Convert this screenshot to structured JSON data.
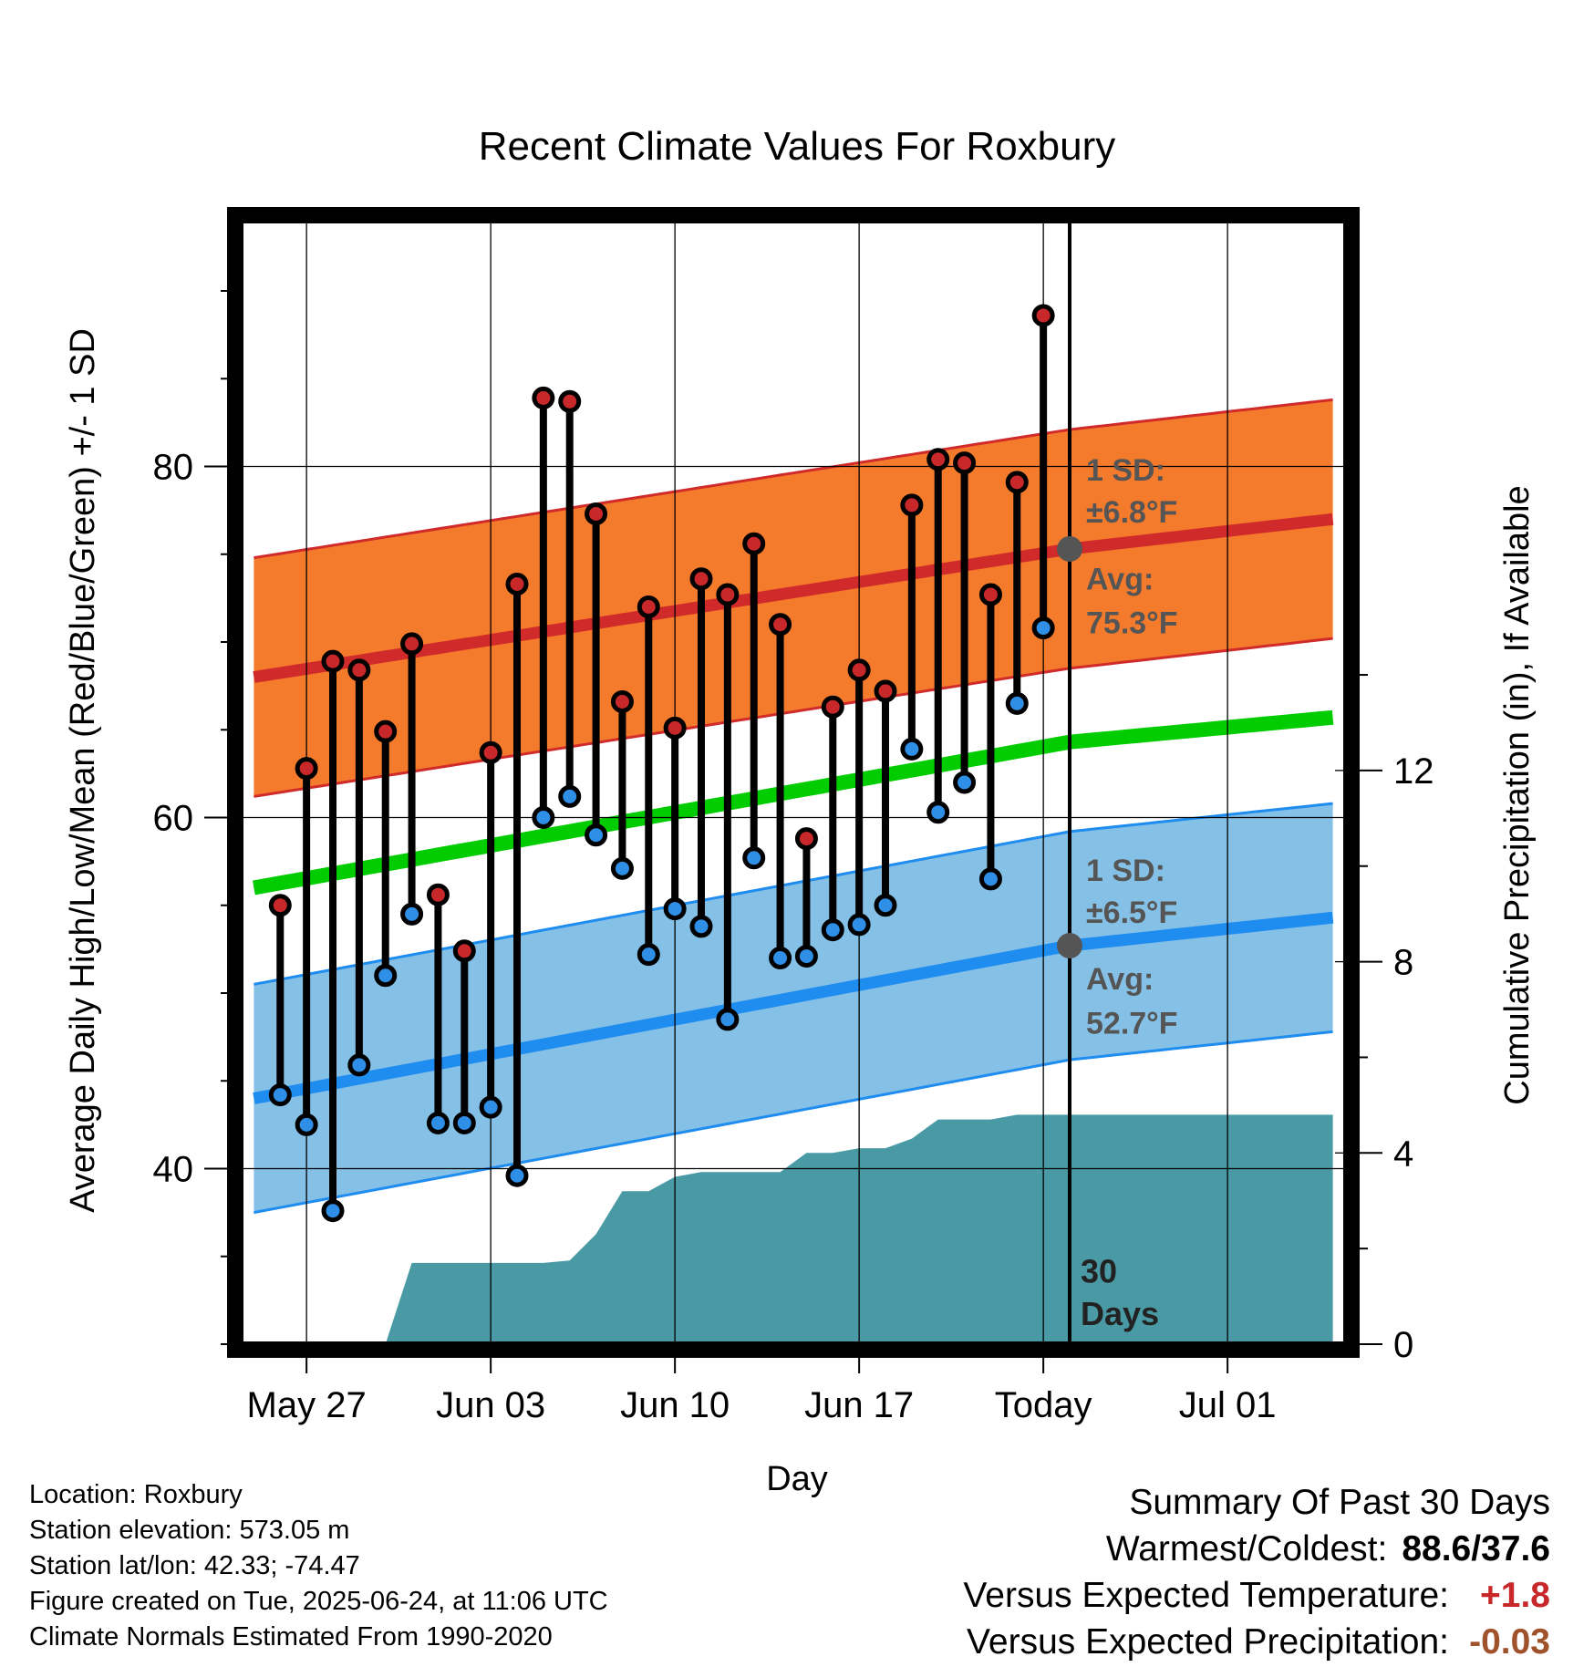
{
  "chart_data": {
    "type": "line",
    "title": "Recent Climate Values For Roxbury",
    "xlabel": "Day",
    "ylabel_left": "Average Daily High/Low/Mean (Red/Blue/Green) +/- 1 SD",
    "ylabel_right": "Cumulative Precipitation (in), If Available",
    "x_ticks": [
      "May 27",
      "Jun 03",
      "Jun 10",
      "Jun 17",
      "Today",
      "Jul 01"
    ],
    "y_left_ticks": [
      "40",
      "60",
      "80"
    ],
    "y_left_range": [
      30,
      94
    ],
    "y_right_ticks": [
      "0",
      "4",
      "8",
      "12"
    ],
    "y_right_range": [
      0,
      23.5
    ],
    "x_range_days_from_may25": [
      -0.5,
      41.5
    ],
    "today_day": 31,
    "daily": {
      "days_from_may25": [
        1,
        2,
        3,
        4,
        5,
        6,
        7,
        8,
        9,
        10,
        11,
        12,
        13,
        14,
        15,
        16,
        17,
        18,
        19,
        20,
        21,
        22,
        23,
        24,
        25,
        26,
        27,
        28,
        29,
        30
      ],
      "high": [
        55.0,
        62.8,
        68.9,
        68.4,
        64.9,
        69.9,
        55.6,
        52.4,
        63.7,
        73.3,
        83.9,
        83.7,
        77.3,
        66.6,
        72.0,
        65.1,
        73.6,
        72.7,
        75.6,
        71.0,
        58.8,
        66.3,
        68.4,
        67.2,
        77.8,
        80.4,
        80.2,
        72.7,
        79.1,
        88.6
      ],
      "low": [
        44.2,
        42.5,
        37.6,
        45.9,
        51.0,
        54.5,
        42.6,
        42.6,
        43.5,
        39.6,
        60.0,
        61.2,
        59.0,
        57.1,
        52.2,
        54.8,
        53.8,
        48.5,
        57.7,
        52.0,
        52.1,
        53.6,
        53.9,
        55.0,
        63.9,
        60.3,
        62.0,
        56.5,
        66.5,
        70.8
      ]
    },
    "normal_high": {
      "days_from_may25": [
        0,
        31,
        41
      ],
      "values": [
        68.0,
        75.3,
        77.0
      ]
    },
    "normal_low": {
      "days_from_may25": [
        0,
        31,
        41
      ],
      "values": [
        44.0,
        52.7,
        54.3
      ]
    },
    "normal_mean": {
      "days_from_may25": [
        0,
        31,
        41
      ],
      "values": [
        56.0,
        64.3,
        65.7
      ]
    },
    "sd_high_f": 6.8,
    "sd_low_f": 6.5,
    "cumulative_precip": {
      "days_from_may25": [
        5,
        6,
        7,
        8,
        9,
        10,
        11,
        12,
        13,
        14,
        15,
        16,
        17,
        18,
        19,
        20,
        21,
        22,
        23,
        24,
        25,
        26,
        27,
        28,
        29,
        30,
        41
      ],
      "values_in": [
        0,
        1.7,
        1.7,
        1.7,
        1.7,
        1.7,
        1.7,
        1.75,
        2.3,
        3.2,
        3.2,
        3.5,
        3.6,
        3.6,
        3.6,
        3.6,
        4.0,
        4.0,
        4.1,
        4.1,
        4.3,
        4.7,
        4.7,
        4.7,
        4.8,
        4.8,
        4.8
      ]
    },
    "colors": {
      "high_band": "#f47a2c",
      "high_line": "#d12a2a",
      "low_band": "#85c0e6",
      "low_line": "#1f8cf0",
      "mean_line": "#00cc00",
      "precip": "#4a9aa5",
      "high_marker": "#c8282a",
      "low_marker": "#2f8ee6"
    },
    "annotations": {
      "high_sd_label": "1 SD:",
      "high_sd_value": "±6.8°F",
      "high_avg_label": "Avg:",
      "high_avg_value": "75.3°F",
      "low_sd_label": "1 SD:",
      "low_sd_value": "±6.5°F",
      "low_avg_label": "Avg:",
      "low_avg_value": "52.7°F",
      "days_count": "30",
      "days_word": "Days"
    },
    "grid": true,
    "legend": "none"
  },
  "footer": {
    "location": "Location: Roxbury",
    "elevation": "Station elevation: 573.05 m",
    "latlon": "Station lat/lon: 42.33; -74.47",
    "created": "Figure created on Tue, 2025-06-24, at 11:06 UTC",
    "normals": "Climate Normals Estimated From 1990-2020"
  },
  "summary": {
    "heading": "Summary Of Past 30 Days",
    "warmest_label": "Warmest/Coldest:",
    "warmest_value": "88.6/37.6",
    "temp_label": "Versus Expected Temperature:",
    "temp_value": "+1.8",
    "temp_color": "#c8282a",
    "precip_label": "Versus Expected Precipitation:",
    "precip_value": "-0.03",
    "precip_color": "#a0522d"
  }
}
